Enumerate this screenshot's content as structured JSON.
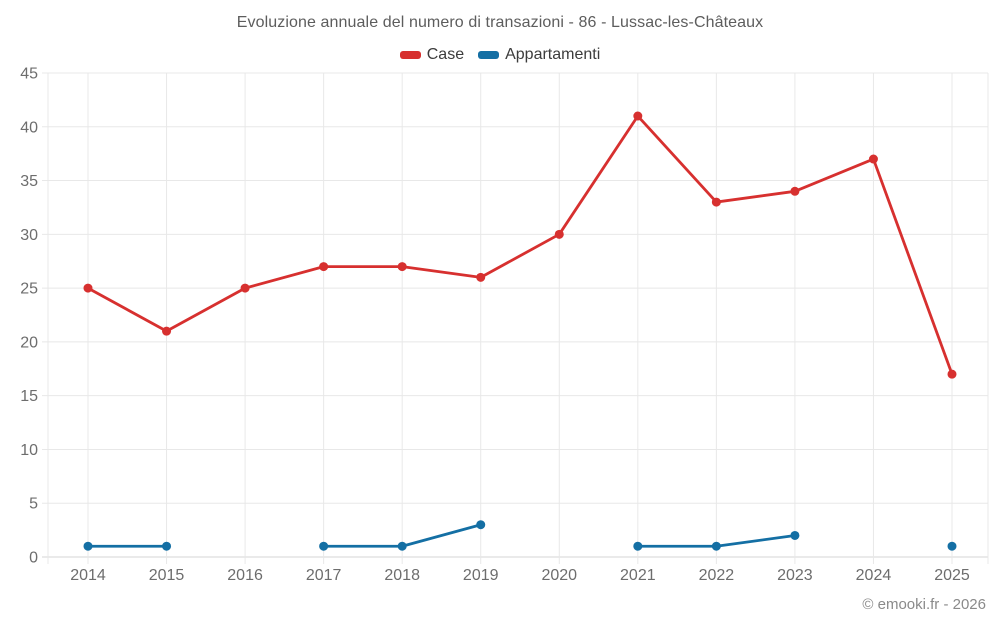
{
  "title": "Evoluzione annuale del numero di transazioni - 86 - Lussac-les-Châteaux",
  "footer": "© emooki.fr - 2026",
  "chart_data": {
    "type": "line",
    "title": "Evoluzione annuale del numero di transazioni - 86 - Lussac-les-Châteaux",
    "categories": [
      "2014",
      "2015",
      "2016",
      "2017",
      "2018",
      "2019",
      "2020",
      "2021",
      "2022",
      "2023",
      "2024",
      "2025"
    ],
    "series": [
      {
        "name": "Case",
        "color": "#d7302f",
        "values": [
          25,
          21,
          25,
          27,
          27,
          26,
          30,
          41,
          33,
          34,
          37,
          17
        ]
      },
      {
        "name": "Appartamenti",
        "color": "#146fa4",
        "values": [
          1,
          1,
          null,
          1,
          1,
          3,
          null,
          1,
          1,
          2,
          null,
          1
        ]
      }
    ],
    "xlabel": "",
    "ylabel": "",
    "ylim": [
      0,
      45
    ],
    "ytick_step": 5,
    "grid": true,
    "legend_position": "top",
    "annotation": "© emooki.fr - 2026"
  }
}
